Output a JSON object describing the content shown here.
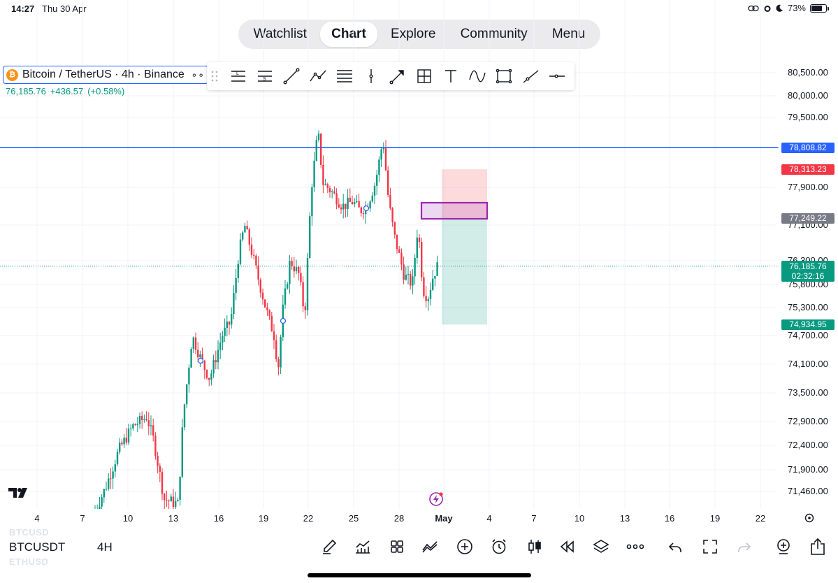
{
  "status_bar": {
    "time": "14:27",
    "date": "Thu 30 Apr",
    "battery": "73%",
    "battery_level": 0.73
  },
  "nav": {
    "tabs": [
      {
        "label": "Watchlist",
        "active": false
      },
      {
        "label": "Chart",
        "active": true
      },
      {
        "label": "Explore",
        "active": false
      },
      {
        "label": "Community",
        "active": false
      },
      {
        "label": "Menu",
        "active": false
      }
    ]
  },
  "symbol": {
    "badge": "₿",
    "title": "Bitcoin / TetherUS · 4h · Binance",
    "more": "∘∘",
    "last_price": "76,185.76",
    "change": "+436.57",
    "change_pct": "(+0.58%)"
  },
  "toolbar": {
    "icons": [
      "long-position-icon",
      "short-position-icon",
      "trend-line-icon",
      "path-icon",
      "parallel-channel-icon",
      "vertical-line-icon",
      "arrow-icon",
      "crosshair-box-icon",
      "text-icon",
      "curve-icon",
      "rectangle-icon",
      "ray-icon",
      "horizontal-ray-icon"
    ]
  },
  "colors": {
    "up": "#089981",
    "down": "#f23645",
    "accent": "#2962ff",
    "grid": "#f0f3fa"
  },
  "chart_data": {
    "type": "candlestick",
    "y_ticks": [
      "80,500.00",
      "80,000.00",
      "79,500.00",
      "77,900.00",
      "77,100.00",
      "76,300.00",
      "75,800.00",
      "75,300.00",
      "74,700.00",
      "74,100.00",
      "73,500.00",
      "72,900.00",
      "72,400.00",
      "71,900.00",
      "71,460.00"
    ],
    "x_ticks": [
      "4",
      "7",
      "10",
      "13",
      "16",
      "19",
      "22",
      "25",
      "28",
      "May",
      "4",
      "7",
      "10",
      "13",
      "16",
      "19",
      "22"
    ],
    "horizontal_line": 78808.82,
    "labels": {
      "hline": "78,808.82",
      "stop": "78,313.23",
      "entry": "77,249.22",
      "current": "76,185.76",
      "countdown": "02:32:16",
      "target": "74,934.95"
    },
    "position": {
      "type": "short",
      "entry": 77249.22,
      "stop": 78313.23,
      "target": 74934.95
    },
    "last_price": 76185.76
  },
  "bottom": {
    "faded_top": "BTCUSD",
    "faded_bottom": "ETHUSD",
    "symbol": "BTCUSDT",
    "interval": "4H",
    "icons": [
      "brush-icon",
      "indicators-icon",
      "templates-icon",
      "compare-icon",
      "add-icon",
      "alert-icon",
      "candles-icon",
      "replay-icon",
      "layers-icon",
      "more-icon",
      "undo-icon",
      "fullscreen-icon",
      "redo-icon",
      "add-symbol-icon",
      "share-icon"
    ]
  }
}
